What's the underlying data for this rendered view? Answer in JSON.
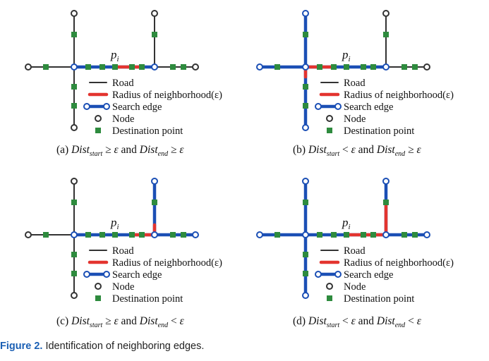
{
  "colors": {
    "road": "#333333",
    "radius": "#e3342f",
    "search": "#1b4fb5",
    "node_stroke": "#333333",
    "destination": "#2e8b3e"
  },
  "point_label": "p",
  "point_sub": "i",
  "legend": {
    "road": "Road",
    "radius": "Radius of neighborhood(ε)",
    "search": "Search edge",
    "node": "Node",
    "destination": "Destination point"
  },
  "panels": [
    {
      "prefix": "(a)",
      "var1": "Dist",
      "sub1": "start",
      "op1": "≥",
      "eps1": "ε",
      "conj": "and",
      "var2": "Dist",
      "sub2": "end",
      "op2": "≥",
      "eps2": "ε"
    },
    {
      "prefix": "(b)",
      "var1": "Dist",
      "sub1": "start",
      "op1": "<",
      "eps1": "ε",
      "conj": "and",
      "var2": "Dist",
      "sub2": "end",
      "op2": "≥",
      "eps2": "ε"
    },
    {
      "prefix": "(c)",
      "var1": "Dist",
      "sub1": "start",
      "op1": "≥",
      "eps1": "ε",
      "conj": "and",
      "var2": "Dist",
      "sub2": "end",
      "op2": "<",
      "eps2": "ε"
    },
    {
      "prefix": "(d)",
      "var1": "Dist",
      "sub1": "start",
      "op1": "<",
      "eps1": "ε",
      "conj": "and",
      "var2": "Dist",
      "sub2": "end",
      "op2": "<",
      "eps2": "ε"
    }
  ],
  "figure_caption": {
    "label": "Figure 2.",
    "text": "Identification of neighboring edges."
  }
}
